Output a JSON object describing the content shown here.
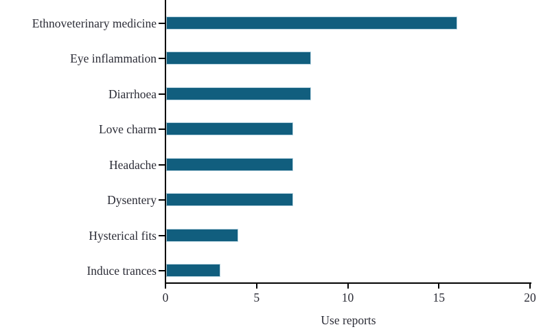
{
  "chart_data": {
    "type": "bar",
    "orientation": "horizontal",
    "categories": [
      "Ethnoveterinary medicine",
      "Eye inflammation",
      "Diarrhoea",
      "Love charm",
      "Headache",
      "Dysentery",
      "Hysterical fits",
      "Induce trances"
    ],
    "values": [
      16,
      8,
      8,
      7,
      7,
      7,
      4,
      3
    ],
    "title": "",
    "xlabel": "Use reports",
    "ylabel": "",
    "xlim": [
      0,
      20
    ],
    "xticks": [
      0,
      5,
      10,
      15,
      20
    ],
    "grid": false,
    "legend_visible": false,
    "bar_color": "#115e7e",
    "bar_border_color": "#b5d2df",
    "axis_color": "#000000",
    "text_color": "#2b2c36"
  }
}
